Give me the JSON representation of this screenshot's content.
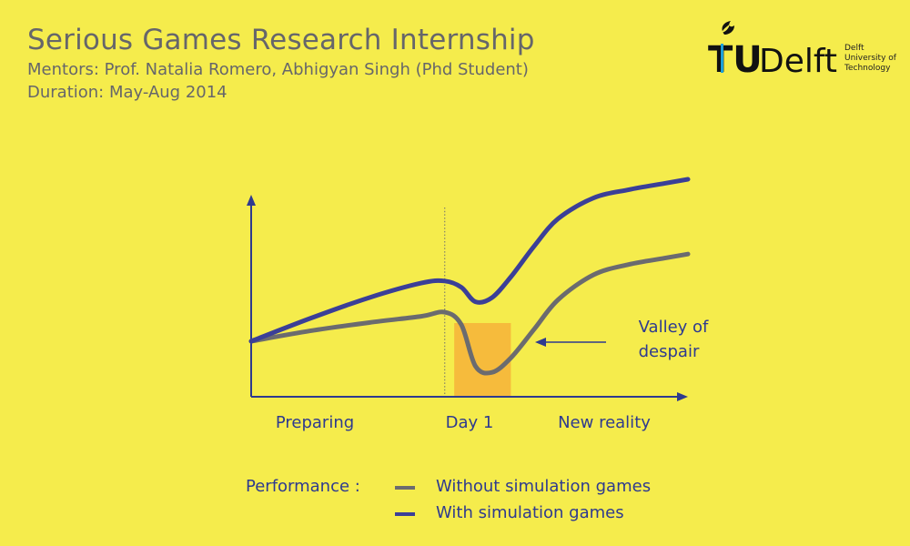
{
  "header": {
    "title": "Serious Games Research Internship",
    "mentors": "Mentors: Prof. Natalia Romero, Abhigyan Singh (Phd Student)",
    "duration": "Duration: May-Aug 2014"
  },
  "logo": {
    "wordmark_tu": "TU",
    "wordmark_delft": "Delft",
    "line1": "Delft",
    "line2": "University of",
    "line3": "Technology"
  },
  "colors": {
    "background": "#f5ec4c",
    "with_series": "#3b3f97",
    "without_series": "#6b6b6f",
    "valley_box": "#f6bb3c",
    "axis": "#2e3a8f",
    "header_text": "#66666a"
  },
  "chart_data": {
    "type": "line",
    "title": "",
    "xlabel": "",
    "ylabel": "",
    "x_labels": [
      "Preparing",
      "Day 1",
      "New reality"
    ],
    "grid": false,
    "legend_title": "Performance :",
    "legend_position": "bottom",
    "series": [
      {
        "name": "Without simulation games",
        "x": [
          0,
          0.25,
          0.5,
          0.72,
          0.82,
          0.89,
          0.95,
          1.02,
          1.1,
          1.2,
          1.3,
          1.45,
          1.6,
          1.75,
          1.85
        ],
        "values": [
          0.27,
          0.32,
          0.36,
          0.39,
          0.41,
          0.35,
          0.15,
          0.12,
          0.19,
          0.33,
          0.47,
          0.59,
          0.64,
          0.67,
          0.69
        ]
      },
      {
        "name": "With simulation games",
        "x": [
          0,
          0.25,
          0.5,
          0.72,
          0.82,
          0.89,
          0.95,
          1.02,
          1.1,
          1.2,
          1.3,
          1.45,
          1.6,
          1.75,
          1.85
        ],
        "values": [
          0.27,
          0.38,
          0.48,
          0.55,
          0.56,
          0.53,
          0.46,
          0.48,
          0.58,
          0.73,
          0.86,
          0.96,
          1.0,
          1.03,
          1.05
        ]
      }
    ],
    "annotations": [
      {
        "text": "Valley of",
        "line2": "despair",
        "type": "highlight-region",
        "x_range": [
          0.86,
          1.1
        ]
      },
      {
        "text": "Day 1",
        "type": "vertical-marker",
        "x": 0.82
      }
    ]
  }
}
